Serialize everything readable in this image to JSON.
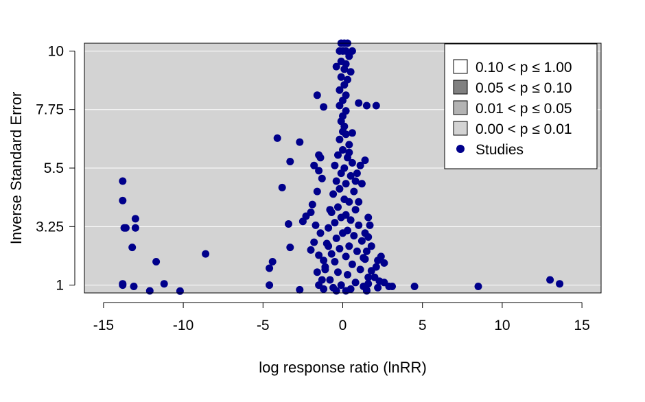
{
  "chart_data": {
    "type": "scatter",
    "title": "",
    "xlabel": "log response ratio (lnRR)",
    "ylabel": "Inverse Standard Error",
    "xlim": [
      -16.2,
      16.2
    ],
    "ylim": [
      0.7,
      10.3
    ],
    "xticks": [
      -15,
      -10,
      -5,
      0,
      5,
      10,
      15
    ],
    "xtick_labels": [
      "-15",
      "-10",
      "-5",
      "0",
      "5",
      "10",
      "15"
    ],
    "yticks": [
      1,
      3.25,
      5.5,
      7.75,
      10
    ],
    "ytick_labels": [
      "1",
      "3.25",
      "5.5",
      "7.75",
      "10"
    ],
    "grid": "horizontal",
    "background": "#d3d3d3",
    "point_color": "#00008b",
    "legend": {
      "placement": "top-right",
      "items": [
        {
          "label": "0.10 < p ≤ 1.00",
          "swatch": "#ffffff"
        },
        {
          "label": "0.05 < p ≤ 0.10",
          "swatch": "#808080"
        },
        {
          "label": "0.01 < p ≤ 0.05",
          "swatch": "#b3b3b3"
        },
        {
          "label": "0.00 < p ≤ 0.01",
          "swatch": "#d3d3d3"
        },
        {
          "label": "Studies",
          "swatch": "#00008b"
        }
      ]
    },
    "series": [
      {
        "name": "Studies",
        "points": [
          [
            -13.8,
            5.0
          ],
          [
            -13.8,
            4.25
          ],
          [
            -13.7,
            3.2
          ],
          [
            -13.6,
            3.2
          ],
          [
            -13.0,
            3.55
          ],
          [
            -13.0,
            3.2
          ],
          [
            -13.2,
            2.45
          ],
          [
            -11.7,
            1.9
          ],
          [
            -13.8,
            1.05
          ],
          [
            -13.8,
            1.0
          ],
          [
            -13.1,
            0.95
          ],
          [
            -11.2,
            1.05
          ],
          [
            -12.1,
            0.78
          ],
          [
            -10.2,
            0.77
          ],
          [
            -8.6,
            2.2
          ],
          [
            -4.1,
            6.65
          ],
          [
            -2.7,
            6.5
          ],
          [
            -3.3,
            5.75
          ],
          [
            -3.8,
            4.75
          ],
          [
            -3.4,
            3.35
          ],
          [
            -3.3,
            2.45
          ],
          [
            -4.4,
            1.9
          ],
          [
            -4.6,
            1.65
          ],
          [
            -4.6,
            1.0
          ],
          [
            -2.7,
            0.82
          ],
          [
            -1.6,
            8.3
          ],
          [
            -1.2,
            7.85
          ],
          [
            -1.5,
            6.0
          ],
          [
            -1.4,
            5.9
          ],
          [
            -1.8,
            5.6
          ],
          [
            -1.5,
            5.4
          ],
          [
            -1.3,
            5.1
          ],
          [
            -1.6,
            4.6
          ],
          [
            -1.9,
            4.1
          ],
          [
            -2.3,
            3.65
          ],
          [
            -2.5,
            3.45
          ],
          [
            -2.0,
            3.8
          ],
          [
            -1.7,
            3.3
          ],
          [
            -1.4,
            3.0
          ],
          [
            -1.8,
            2.65
          ],
          [
            -2.0,
            2.35
          ],
          [
            -1.5,
            2.15
          ],
          [
            -1.2,
            1.95
          ],
          [
            -1.1,
            1.6
          ],
          [
            -1.6,
            1.5
          ],
          [
            -1.3,
            1.2
          ],
          [
            -1.5,
            1.0
          ],
          [
            -1.2,
            0.85
          ],
          [
            -0.9,
            2.5
          ],
          [
            -0.8,
            3.9
          ],
          [
            -0.1,
            10.3
          ],
          [
            0.1,
            10.3
          ],
          [
            0.3,
            10.3
          ],
          [
            -0.2,
            10.0
          ],
          [
            0.0,
            10.0
          ],
          [
            0.2,
            10.0
          ],
          [
            0.6,
            10.0
          ],
          [
            0.4,
            9.8
          ],
          [
            -0.1,
            9.6
          ],
          [
            0.2,
            9.5
          ],
          [
            -0.4,
            9.4
          ],
          [
            0.1,
            9.3
          ],
          [
            0.5,
            9.2
          ],
          [
            -0.1,
            9.0
          ],
          [
            0.3,
            8.9
          ],
          [
            0.1,
            8.7
          ],
          [
            -0.2,
            8.5
          ],
          [
            0.2,
            8.3
          ],
          [
            0.0,
            8.1
          ],
          [
            -0.2,
            7.9
          ],
          [
            0.2,
            7.7
          ],
          [
            0.0,
            7.5
          ],
          [
            -0.1,
            7.3
          ],
          [
            0.1,
            7.1
          ],
          [
            0.0,
            6.9
          ],
          [
            0.2,
            6.8
          ],
          [
            -0.2,
            6.6
          ],
          [
            0.4,
            6.4
          ],
          [
            0.0,
            6.2
          ],
          [
            -0.3,
            6.0
          ],
          [
            0.3,
            5.9
          ],
          [
            0.6,
            5.7
          ],
          [
            -0.5,
            5.6
          ],
          [
            0.1,
            5.5
          ],
          [
            -0.1,
            5.3
          ],
          [
            0.5,
            5.2
          ],
          [
            -0.4,
            5.0
          ],
          [
            0.2,
            4.9
          ],
          [
            -0.2,
            4.7
          ],
          [
            0.7,
            4.6
          ],
          [
            -0.6,
            4.5
          ],
          [
            0.1,
            4.3
          ],
          [
            0.4,
            4.2
          ],
          [
            -0.3,
            4.0
          ],
          [
            0.8,
            3.9
          ],
          [
            -0.7,
            3.8
          ],
          [
            0.2,
            3.7
          ],
          [
            -0.1,
            3.6
          ],
          [
            0.5,
            3.5
          ],
          [
            -0.5,
            3.4
          ],
          [
            1.0,
            3.3
          ],
          [
            -0.9,
            3.2
          ],
          [
            0.3,
            3.1
          ],
          [
            0.0,
            3.0
          ],
          [
            0.7,
            2.9
          ],
          [
            -0.4,
            2.8
          ],
          [
            1.2,
            2.7
          ],
          [
            -1.0,
            2.6
          ],
          [
            0.4,
            2.5
          ],
          [
            -0.2,
            2.4
          ],
          [
            0.9,
            2.3
          ],
          [
            -0.7,
            2.2
          ],
          [
            0.2,
            2.1
          ],
          [
            1.4,
            2.0
          ],
          [
            -0.5,
            1.9
          ],
          [
            0.6,
            1.8
          ],
          [
            -1.1,
            1.7
          ],
          [
            1.1,
            1.6
          ],
          [
            -0.3,
            1.5
          ],
          [
            0.3,
            1.4
          ],
          [
            1.6,
            1.3
          ],
          [
            -0.8,
            1.2
          ],
          [
            0.8,
            1.1
          ],
          [
            -0.1,
            1.0
          ],
          [
            1.3,
            0.95
          ],
          [
            -0.6,
            0.9
          ],
          [
            0.5,
            0.85
          ],
          [
            1.5,
            0.8
          ],
          [
            -0.4,
            0.78
          ],
          [
            0.2,
            0.78
          ],
          [
            1.0,
            8.0
          ],
          [
            1.5,
            7.9
          ],
          [
            2.1,
            7.9
          ],
          [
            0.6,
            6.85
          ],
          [
            0.4,
            6.1
          ],
          [
            1.4,
            5.8
          ],
          [
            1.1,
            5.6
          ],
          [
            0.9,
            5.3
          ],
          [
            0.8,
            5.0
          ],
          [
            1.2,
            4.9
          ],
          [
            1.0,
            4.2
          ],
          [
            1.6,
            3.6
          ],
          [
            1.7,
            3.3
          ],
          [
            1.4,
            3.0
          ],
          [
            1.6,
            2.85
          ],
          [
            1.8,
            2.5
          ],
          [
            1.5,
            2.3
          ],
          [
            1.3,
            2.05
          ],
          [
            2.4,
            2.1
          ],
          [
            2.2,
            1.95
          ],
          [
            2.6,
            1.85
          ],
          [
            2.1,
            1.7
          ],
          [
            1.8,
            1.55
          ],
          [
            2.0,
            1.3
          ],
          [
            2.3,
            1.15
          ],
          [
            2.6,
            1.1
          ],
          [
            1.6,
            1.05
          ],
          [
            2.2,
            0.9
          ],
          [
            1.5,
            0.78
          ],
          [
            2.9,
            0.95
          ],
          [
            3.1,
            0.95
          ],
          [
            4.5,
            0.95
          ],
          [
            8.5,
            0.95
          ],
          [
            13.0,
            1.2
          ],
          [
            13.6,
            1.05
          ]
        ]
      }
    ]
  }
}
